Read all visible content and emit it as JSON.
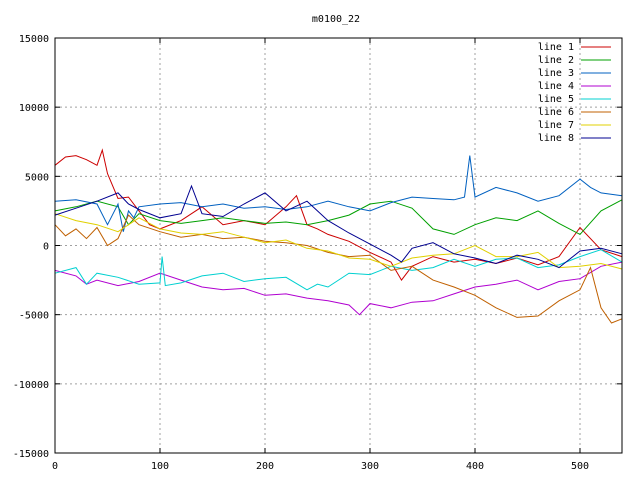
{
  "chart_data": {
    "type": "line",
    "title": "m0100_22",
    "xlabel": "",
    "ylabel": "",
    "xlim": [
      0,
      540
    ],
    "ylim": [
      -15000,
      15000
    ],
    "xticks": [
      0,
      100,
      200,
      300,
      400,
      500
    ],
    "xtick_labels": [
      "0",
      "100",
      "200",
      "300",
      "400",
      "500"
    ],
    "yticks": [
      -15000,
      -10000,
      -5000,
      0,
      5000,
      10000,
      15000
    ],
    "ytick_labels": [
      "-15000",
      "-10000",
      "-5000",
      "0",
      "5000",
      "10000",
      "15000"
    ],
    "grid": true,
    "legend_position": "top-right",
    "series": [
      {
        "name": "line 1",
        "color": "#cc0000",
        "x": [
          0,
          10,
          20,
          30,
          40,
          45,
          50,
          60,
          70,
          80,
          90,
          100,
          120,
          140,
          160,
          180,
          200,
          220,
          230,
          240,
          250,
          260,
          280,
          300,
          320,
          330,
          340,
          360,
          380,
          400,
          420,
          440,
          460,
          480,
          500,
          520,
          540
        ],
        "y": [
          5800,
          6400,
          6500,
          6200,
          5800,
          6900,
          5200,
          3400,
          3500,
          2500,
          1500,
          1200,
          1800,
          2800,
          1500,
          1800,
          1500,
          2800,
          3600,
          1500,
          1200,
          800,
          300,
          -500,
          -1200,
          -2500,
          -1500,
          -800,
          -1200,
          -1000,
          -1300,
          -900,
          -1400,
          -800,
          1300,
          -300,
          -800
        ]
      },
      {
        "name": "line 2",
        "color": "#00a000",
        "x": [
          0,
          20,
          40,
          60,
          70,
          80,
          100,
          120,
          140,
          160,
          180,
          200,
          220,
          240,
          260,
          280,
          300,
          320,
          340,
          360,
          380,
          400,
          420,
          440,
          460,
          480,
          500,
          520,
          540
        ],
        "y": [
          2500,
          2800,
          3200,
          2800,
          1500,
          2300,
          1800,
          1600,
          1800,
          2000,
          1800,
          1600,
          1700,
          1500,
          1800,
          2200,
          3000,
          3200,
          2700,
          1200,
          800,
          1500,
          2000,
          1800,
          2500,
          1600,
          800,
          2500,
          3300
        ]
      },
      {
        "name": "line 3",
        "color": "#0060c0",
        "x": [
          0,
          20,
          40,
          50,
          60,
          65,
          70,
          75,
          80,
          100,
          120,
          140,
          160,
          180,
          200,
          220,
          240,
          260,
          280,
          300,
          320,
          340,
          360,
          380,
          390,
          395,
          400,
          420,
          440,
          460,
          480,
          500,
          510,
          520,
          540
        ],
        "y": [
          3200,
          3300,
          3000,
          1500,
          3000,
          1000,
          2500,
          2000,
          2800,
          3000,
          3100,
          2800,
          3000,
          2700,
          2800,
          2600,
          2800,
          3200,
          2800,
          2500,
          3100,
          3500,
          3400,
          3300,
          3500,
          6500,
          3500,
          4200,
          3800,
          3200,
          3600,
          4800,
          4200,
          3800,
          3600
        ]
      },
      {
        "name": "line 4",
        "color": "#b000d0",
        "x": [
          0,
          20,
          30,
          40,
          60,
          80,
          100,
          120,
          140,
          160,
          180,
          200,
          220,
          240,
          260,
          280,
          290,
          300,
          320,
          340,
          360,
          380,
          400,
          420,
          440,
          460,
          480,
          500,
          520,
          540
        ],
        "y": [
          -1800,
          -2200,
          -2800,
          -2500,
          -2900,
          -2600,
          -2000,
          -2500,
          -3000,
          -3200,
          -3100,
          -3600,
          -3500,
          -3800,
          -4000,
          -4300,
          -5000,
          -4200,
          -4500,
          -4100,
          -4000,
          -3500,
          -3000,
          -2800,
          -2500,
          -3200,
          -2600,
          -2400,
          -1500,
          -1200
        ]
      },
      {
        "name": "line 5",
        "color": "#00d0d0",
        "x": [
          0,
          20,
          30,
          40,
          60,
          80,
          100,
          102,
          105,
          120,
          140,
          160,
          180,
          200,
          220,
          240,
          250,
          260,
          280,
          300,
          320,
          340,
          360,
          380,
          400,
          420,
          440,
          460,
          480,
          500,
          520,
          540
        ],
        "y": [
          -2000,
          -1600,
          -2800,
          -2000,
          -2300,
          -2800,
          -2700,
          -800,
          -2900,
          -2700,
          -2200,
          -2000,
          -2600,
          -2400,
          -2300,
          -3200,
          -2800,
          -3000,
          -2000,
          -2100,
          -1500,
          -1800,
          -1600,
          -1000,
          -1500,
          -1000,
          -900,
          -1600,
          -1400,
          -800,
          -300,
          -1200
        ]
      },
      {
        "name": "line 6",
        "color": "#c06000",
        "x": [
          0,
          10,
          20,
          30,
          40,
          50,
          60,
          70,
          80,
          100,
          120,
          140,
          160,
          180,
          200,
          220,
          240,
          260,
          280,
          300,
          320,
          340,
          360,
          380,
          400,
          420,
          440,
          460,
          480,
          500,
          510,
          520,
          530,
          540
        ],
        "y": [
          1500,
          700,
          1200,
          500,
          1300,
          0,
          500,
          2200,
          1500,
          1000,
          600,
          800,
          500,
          600,
          300,
          200,
          0,
          -500,
          -800,
          -700,
          -1800,
          -1500,
          -2500,
          -3000,
          -3600,
          -4500,
          -5200,
          -5100,
          -4000,
          -3200,
          -1600,
          -4500,
          -5600,
          -5300
        ]
      },
      {
        "name": "line 7",
        "color": "#e0d000",
        "x": [
          0,
          20,
          40,
          60,
          80,
          100,
          120,
          140,
          160,
          180,
          200,
          220,
          240,
          260,
          280,
          300,
          320,
          340,
          360,
          380,
          400,
          420,
          440,
          460,
          480,
          500,
          520,
          540
        ],
        "y": [
          2300,
          1800,
          1500,
          1000,
          2000,
          1200,
          900,
          800,
          1000,
          600,
          200,
          400,
          -200,
          -400,
          -900,
          -1000,
          -1500,
          -900,
          -700,
          -600,
          0,
          -800,
          -800,
          -500,
          -1600,
          -1500,
          -1300,
          -1700
        ]
      },
      {
        "name": "line 8",
        "color": "#000090",
        "x": [
          0,
          20,
          40,
          60,
          70,
          80,
          100,
          120,
          130,
          140,
          160,
          180,
          200,
          220,
          240,
          260,
          280,
          300,
          320,
          330,
          340,
          360,
          380,
          400,
          420,
          440,
          460,
          480,
          500,
          520,
          540
        ],
        "y": [
          2200,
          2700,
          3200,
          3800,
          3000,
          2600,
          2000,
          2300,
          4300,
          2300,
          2100,
          3000,
          3800,
          2500,
          3200,
          1800,
          900,
          100,
          -700,
          -1200,
          -200,
          200,
          -600,
          -900,
          -1300,
          -700,
          -1000,
          -1600,
          -400,
          -200,
          -600
        ]
      }
    ]
  }
}
